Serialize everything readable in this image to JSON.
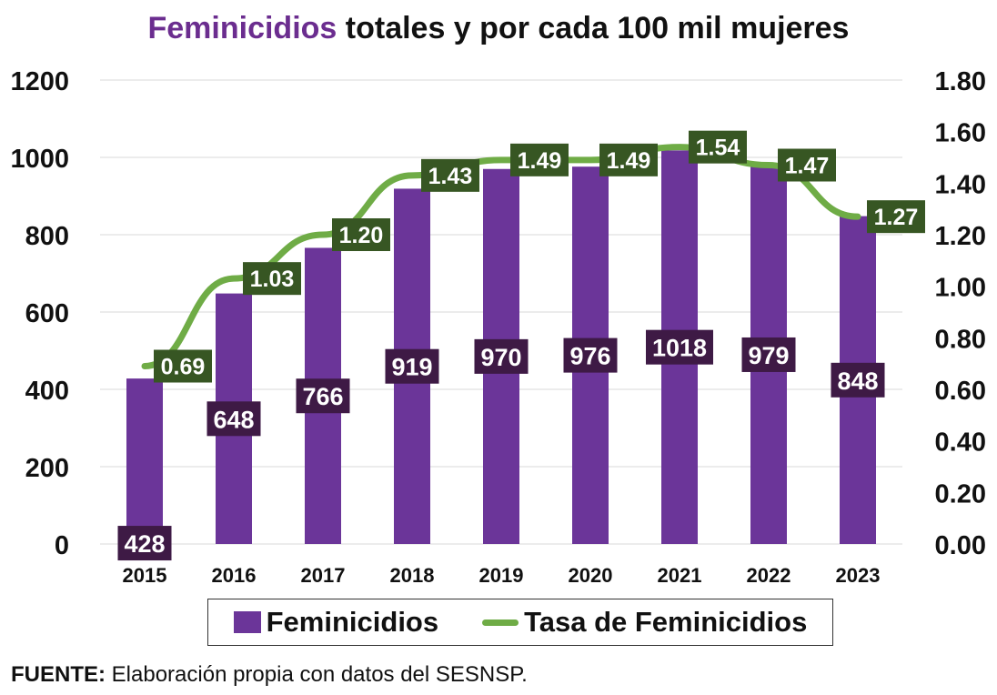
{
  "title": {
    "accent": "Feminicidios",
    "rest": " totales y por cada 100 mil mujeres"
  },
  "source": {
    "label": "FUENTE:",
    "text": " Elaboración propia con datos del SESNSP."
  },
  "legend": {
    "bar_label": "Feminicidios",
    "line_label": "Tasa de Feminicidios"
  },
  "colors": {
    "bar": "#6b3599",
    "line": "#6fac46",
    "bar_label_bg": "#3e1a45",
    "line_label_bg": "#375623",
    "grid": "#d9d9d9"
  },
  "chart_data": {
    "type": "bar",
    "categories": [
      "2015",
      "2016",
      "2017",
      "2018",
      "2019",
      "2020",
      "2021",
      "2022",
      "2023"
    ],
    "series": [
      {
        "name": "Feminicidios",
        "type": "bar",
        "axis": "left",
        "values": [
          428,
          648,
          766,
          919,
          970,
          976,
          1018,
          979,
          848
        ]
      },
      {
        "name": "Tasa de Feminicidios",
        "type": "line",
        "axis": "right",
        "values": [
          0.69,
          1.03,
          1.2,
          1.43,
          1.49,
          1.49,
          1.54,
          1.47,
          1.27
        ]
      }
    ],
    "y_left": {
      "min": 0,
      "max": 1200,
      "ticks": [
        "0",
        "200",
        "400",
        "600",
        "800",
        "1000",
        "1200"
      ]
    },
    "y_right": {
      "min": 0,
      "max": 1.8,
      "ticks": [
        "0.00",
        "0.20",
        "0.40",
        "0.60",
        "0.80",
        "1.00",
        "1.20",
        "1.40",
        "1.60",
        "1.80"
      ]
    },
    "bar_labels": [
      "428",
      "648",
      "766",
      "919",
      "970",
      "976",
      "1018",
      "979",
      "848"
    ],
    "line_labels": [
      "0.69",
      "1.03",
      "1.20",
      "1.43",
      "1.49",
      "1.49",
      "1.54",
      "1.47",
      "1.27"
    ],
    "grid": true,
    "legend_position": "bottom"
  }
}
